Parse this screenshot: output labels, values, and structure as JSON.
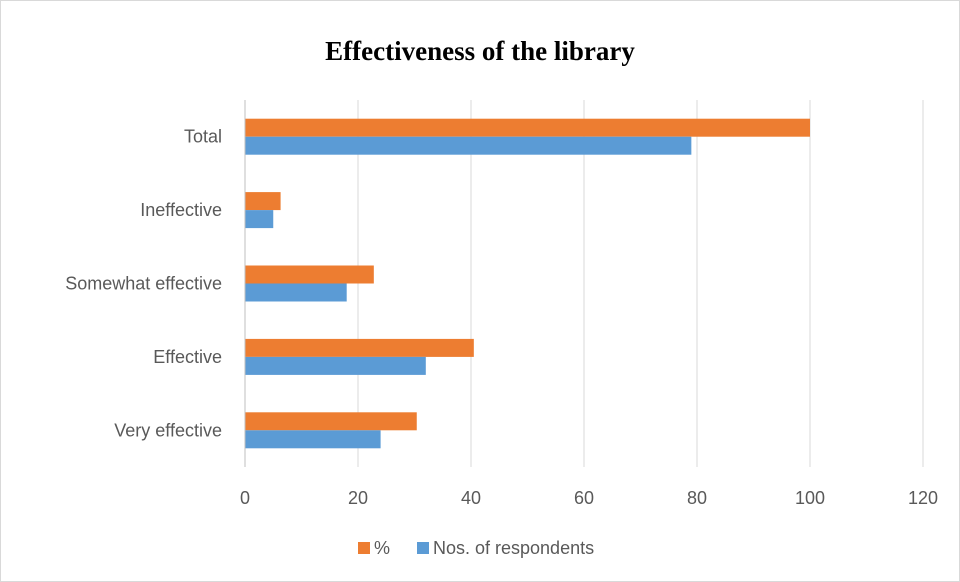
{
  "chart_data": {
    "type": "bar",
    "orientation": "horizontal",
    "title": "Effectiveness of the library",
    "categories": [
      "Very effective",
      "Effective",
      "Somewhat effective",
      "Ineffective",
      "Total"
    ],
    "series": [
      {
        "name": "%",
        "values": [
          30.4,
          40.5,
          22.8,
          6.3,
          100
        ],
        "color": "#ed7d31"
      },
      {
        "name": "Nos. of respondents",
        "values": [
          24,
          32,
          18,
          5,
          79
        ],
        "color": "#5b9bd5"
      }
    ],
    "xlim": [
      0,
      120
    ],
    "xticks": [
      0,
      20,
      40,
      60,
      80,
      100,
      120
    ],
    "grid": true,
    "legend_position": "bottom",
    "xlabel": "",
    "ylabel": ""
  }
}
